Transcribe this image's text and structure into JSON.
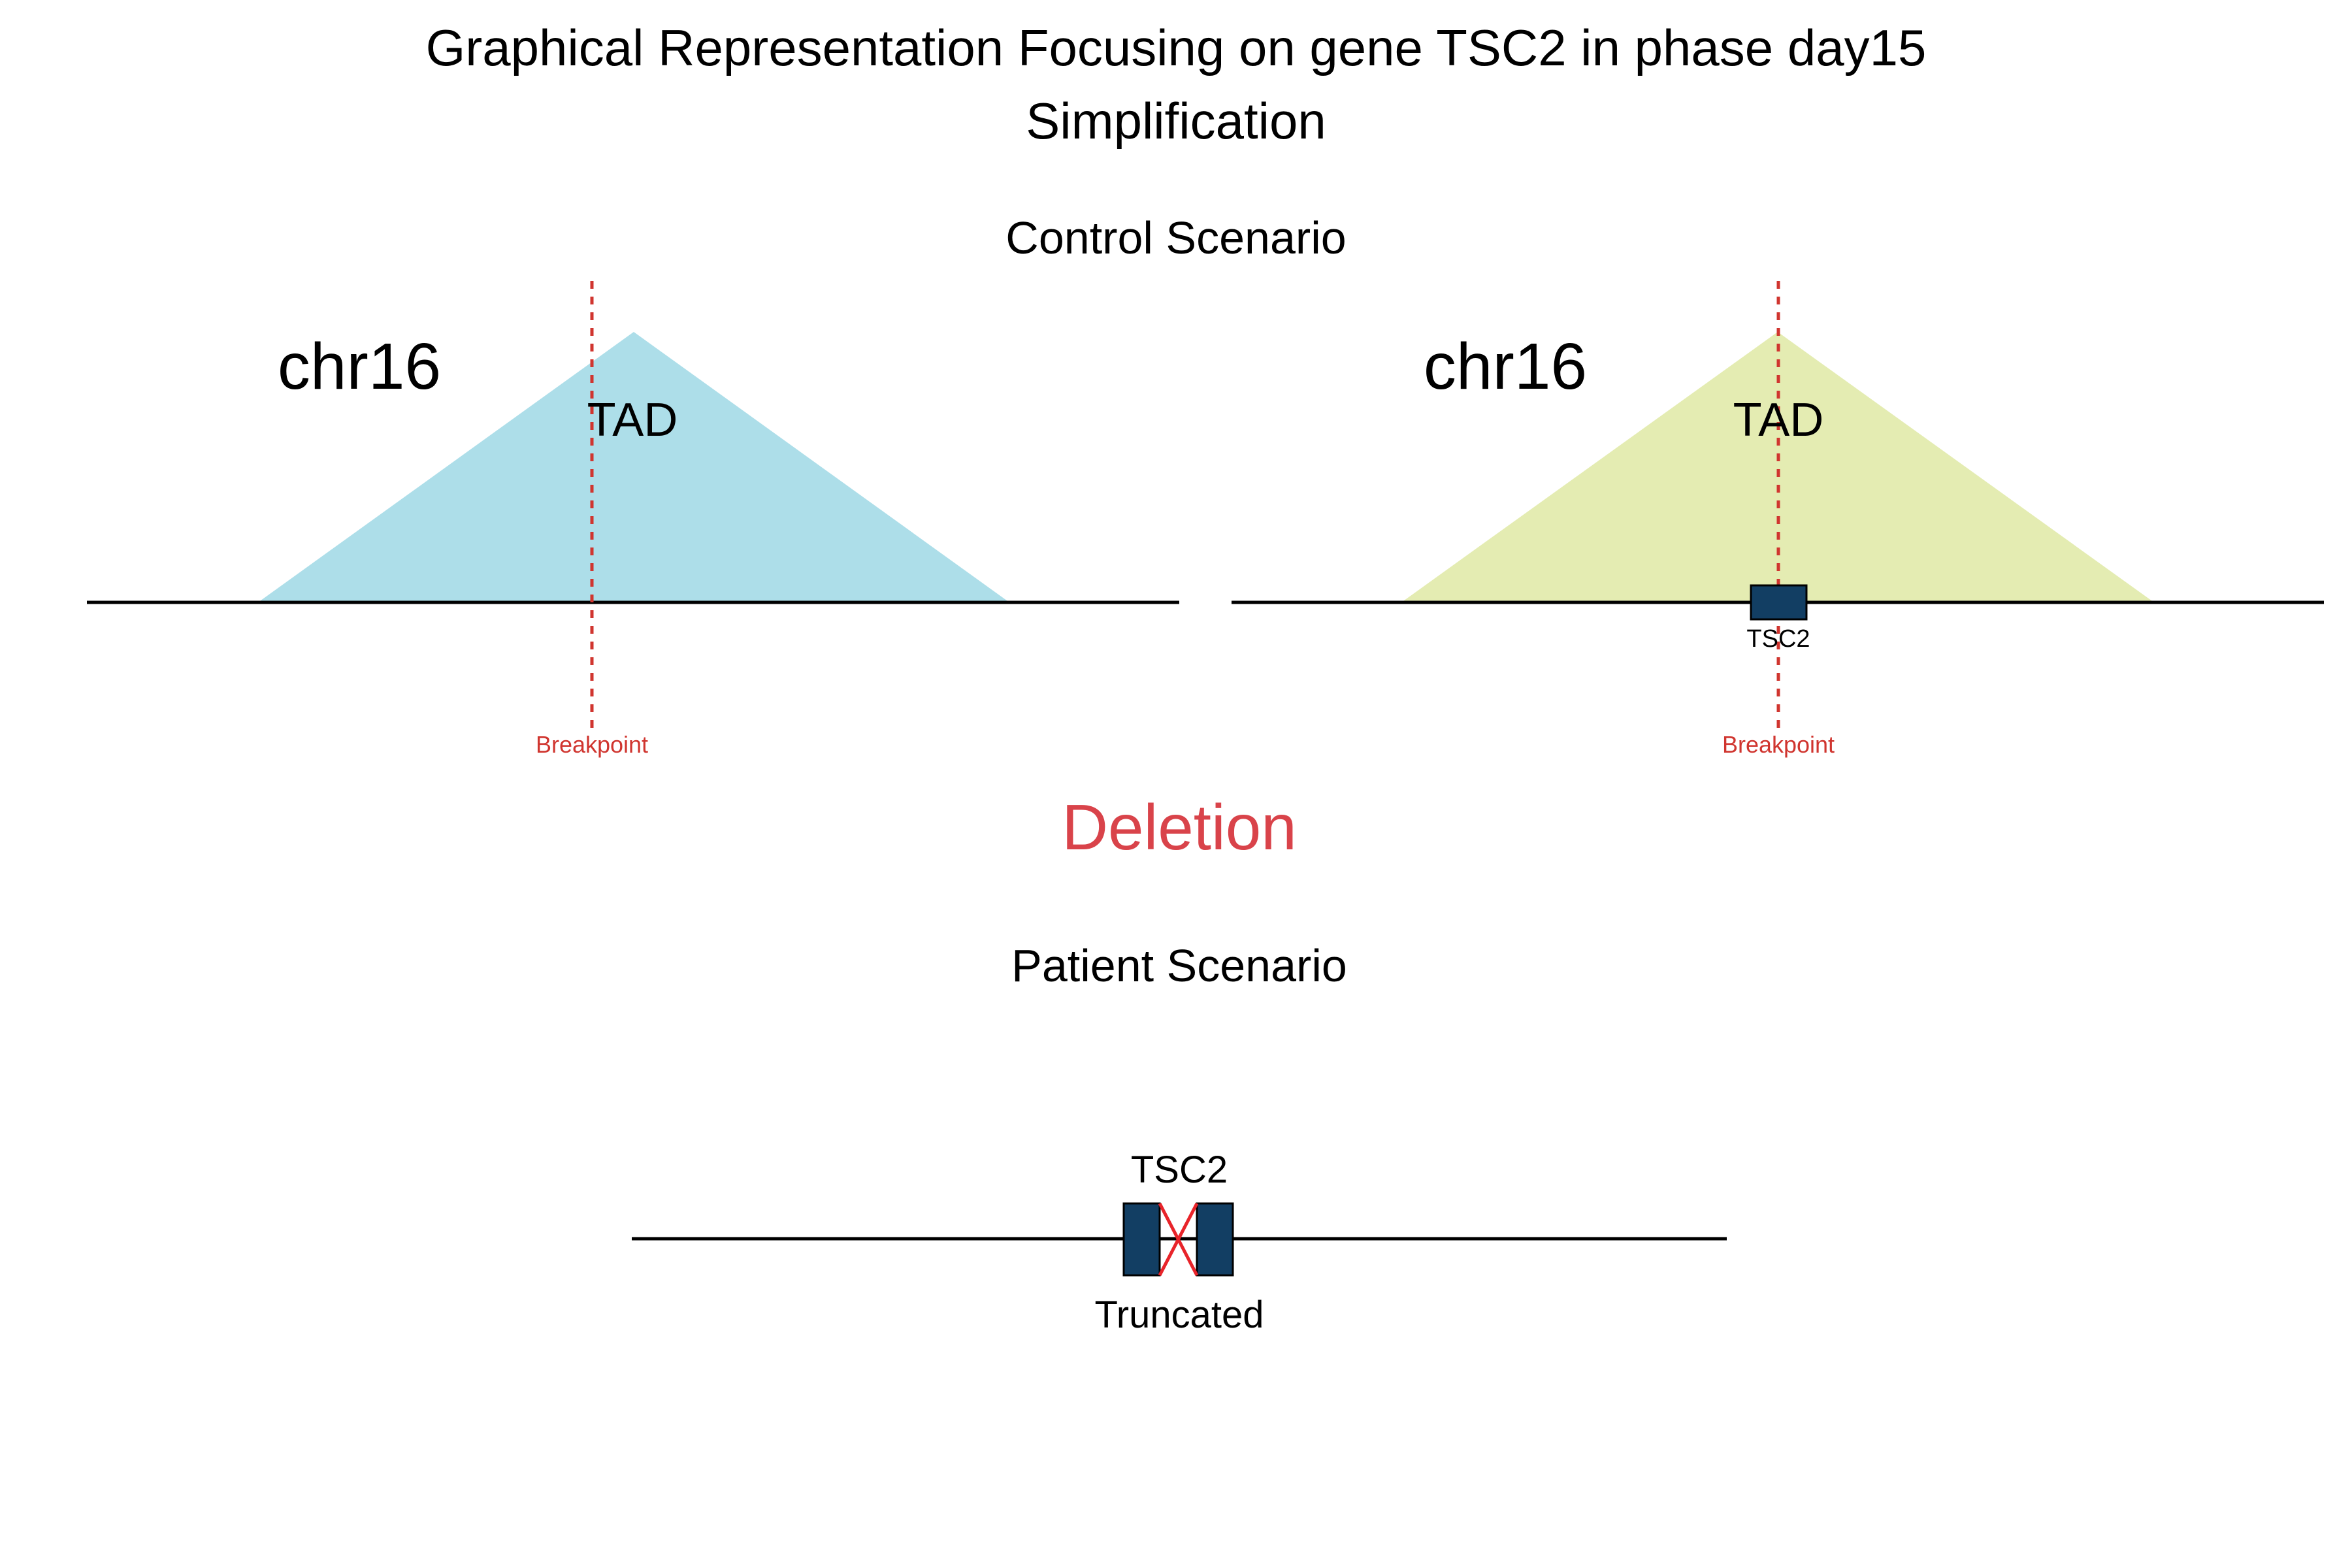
{
  "title_line1": "Graphical Representation Focusing on gene TSC2 in phase day15",
  "title_line2": "Simplification",
  "control": {
    "heading": "Control Scenario",
    "left": {
      "chrom": "chr16",
      "tad": "TAD",
      "breakpoint": "Breakpoint"
    },
    "right": {
      "chrom": "chr16",
      "tad": "TAD",
      "gene": "TSC2",
      "breakpoint": "Breakpoint"
    }
  },
  "event": "Deletion",
  "patient": {
    "heading": "Patient Scenario",
    "gene": "TSC2",
    "status": "Truncated"
  },
  "colors": {
    "tad_left": "#ADDEE9",
    "tad_right": "#E4ECB2",
    "gene": "#123E63",
    "breakpoint": "#D0352F",
    "event": "#D9434A",
    "cross": "#E8242A",
    "line": "#000000"
  }
}
